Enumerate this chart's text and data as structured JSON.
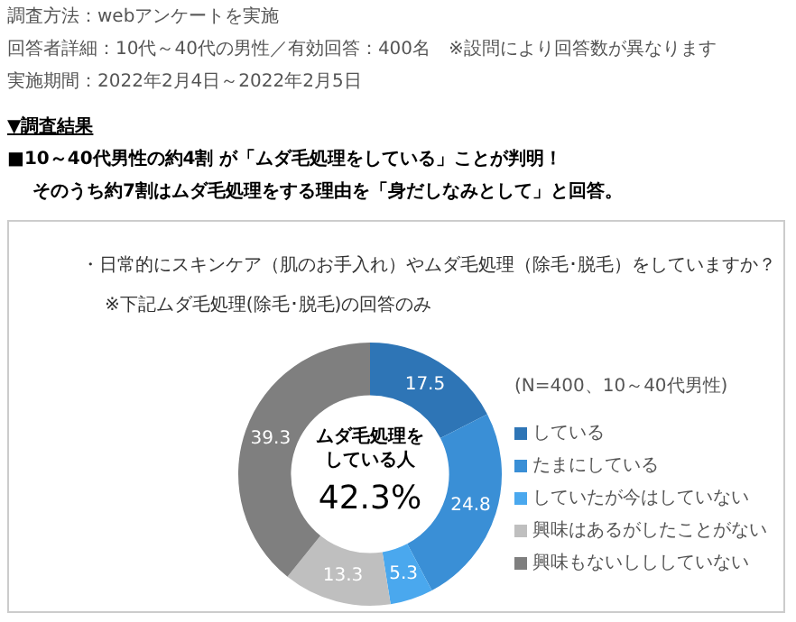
{
  "chart_data": {
    "type": "donut",
    "title": "・日常的にスキンケア（肌のお手入れ）やムダ毛処理（除毛･脱毛）をしていますか？",
    "subtitle": "※下記ムダ毛処理(除毛･脱毛)の回答のみ",
    "categories": [
      "している",
      "たまにしている",
      "していたが今はしていない",
      "興味はあるがしたことがない",
      "興味もないしししていない"
    ],
    "values": [
      17.5,
      24.8,
      5.3,
      13.3,
      39.3
    ],
    "colors": [
      "#2e75b6",
      "#3a8fd6",
      "#4aa8ee",
      "#bfbfbf",
      "#7f7f7f"
    ],
    "data_labels": true,
    "legend": "right",
    "legend_title": "(N=400、10～40代男性)",
    "annotations": [
      "調査方法：webアンケートを実施",
      "回答者詳細：10代～40代の男性／有効回答：400名　※設問により回答数が異なります",
      "実施期間：2022年2月4日～2022年2月5日",
      "▼調査結果",
      "■10～40代男性の約4割 が「ムダ毛処理をしている」ことが判明！",
      "そのうち約7割はムダ毛処理をする理由を「身だしなみとして」と回答。",
      "ムダ毛処理をしている人",
      "42.3%"
    ]
  }
}
